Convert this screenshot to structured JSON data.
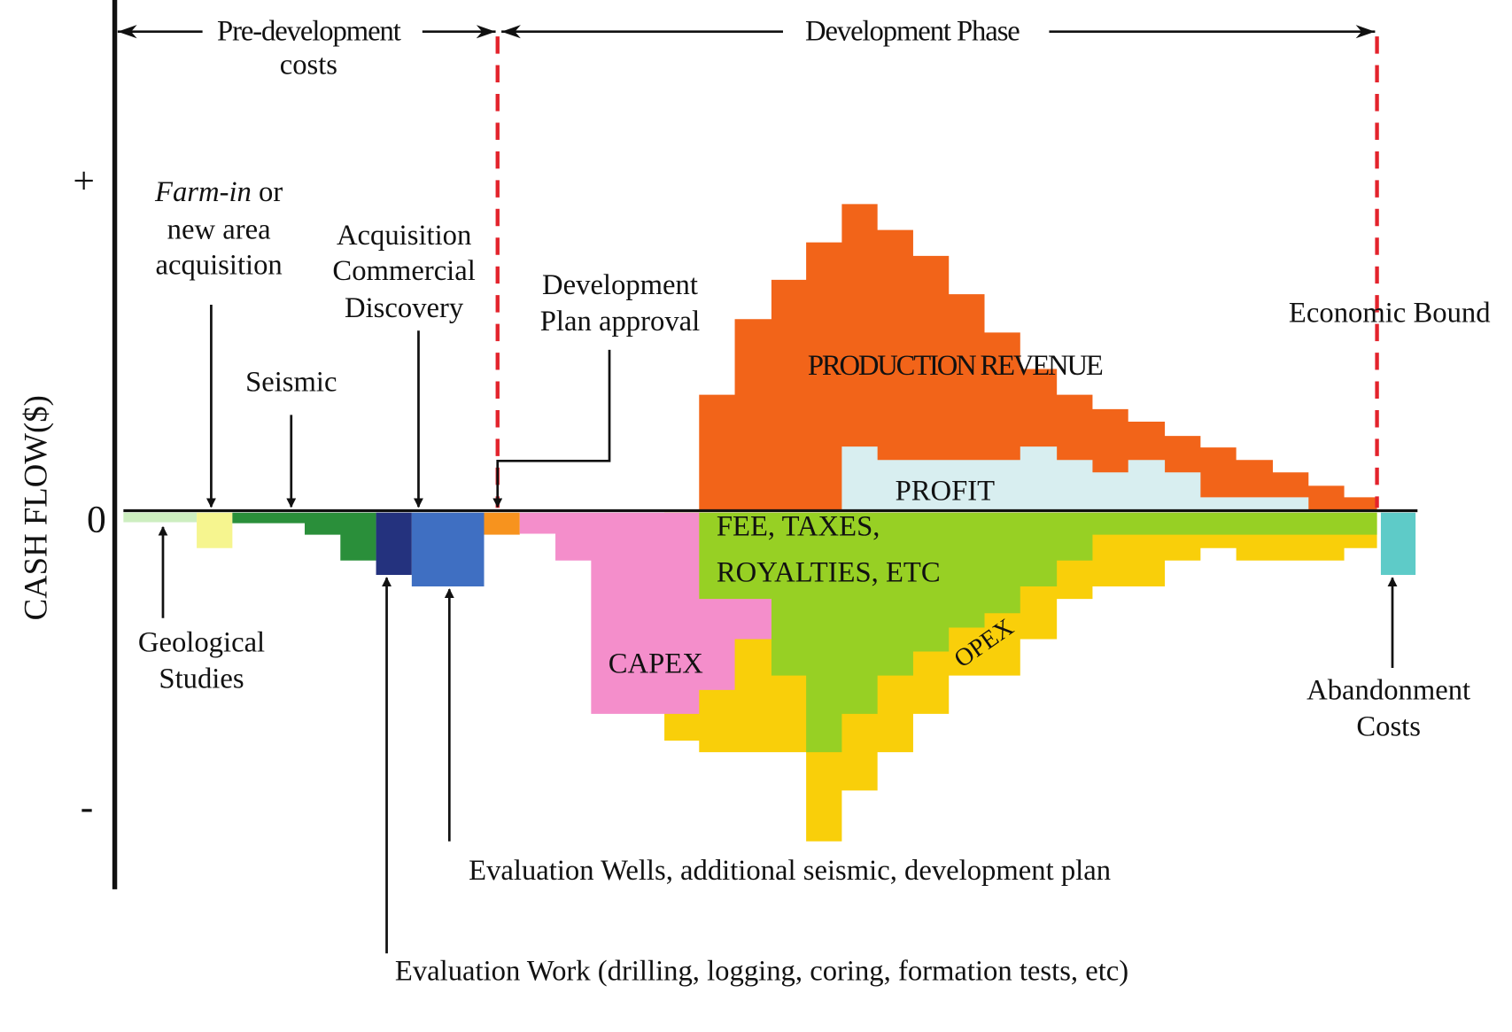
{
  "header": {
    "pre_development": [
      "Pre-development",
      "costs"
    ],
    "development_phase": "Development Phase"
  },
  "axis": {
    "plus": "+",
    "zero": "0",
    "minus": "-",
    "label": "CASH FLOW($)"
  },
  "annotations": {
    "farm_in": {
      "italic": "Farm-in",
      "rest": " or",
      "lines": [
        "new area",
        "acquisition"
      ]
    },
    "seismic": "Seismic",
    "acquisition": [
      "Acquisition",
      "Commercial",
      "Discovery"
    ],
    "development_plan": [
      "Development",
      "Plan approval"
    ],
    "economic_bound": "Economic Bound",
    "geological": [
      "Geological",
      "Studies"
    ],
    "abandonment": [
      "Abandonment",
      "Costs"
    ],
    "evaluation_wells": "Evaluation Wells, additional seismic, development plan",
    "evaluation_work": "Evaluation Work (drilling, logging, coring, formation tests, etc)"
  },
  "regions": {
    "production_revenue": "PRODUCTION REVENUE",
    "profit": "PROFIT",
    "fees": [
      "FEE, TAXES,",
      "ROYALTIES, ETC"
    ],
    "capex": "CAPEX",
    "opex": "OPEX"
  }
}
